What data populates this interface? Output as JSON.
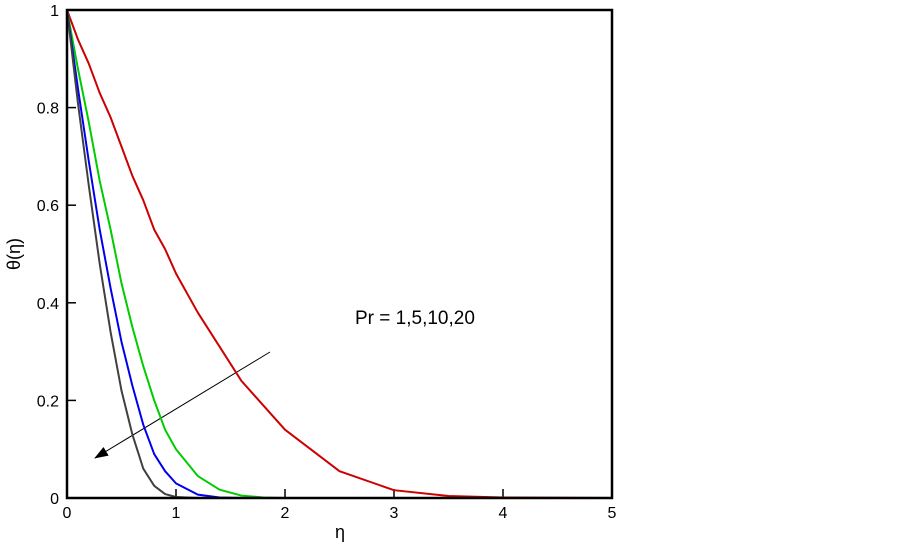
{
  "chart_data": {
    "type": "line",
    "x_label": "η",
    "y_label": "θ(η)",
    "annotation": "Pr = 1,5,10,20",
    "x": [
      0,
      0.1,
      0.2,
      0.3,
      0.4,
      0.5,
      0.6,
      0.7,
      0.8,
      0.9,
      1,
      1.2,
      1.4,
      1.6,
      1.8,
      2,
      2.5,
      3,
      3.5,
      4,
      5
    ],
    "series": [
      {
        "color": "#cc0000",
        "values": [
          1,
          0.94,
          0.89,
          0.83,
          0.78,
          0.72,
          0.66,
          0.61,
          0.55,
          0.51,
          0.46,
          0.38,
          0.31,
          0.24,
          0.19,
          0.14,
          0.055,
          0.016,
          0.004,
          0.001,
          0
        ]
      },
      {
        "color": "#00cc00",
        "values": [
          1,
          0.88,
          0.77,
          0.65,
          0.55,
          0.44,
          0.35,
          0.27,
          0.2,
          0.14,
          0.1,
          0.045,
          0.017,
          0.005,
          0.001,
          0,
          0,
          0,
          0,
          0,
          0
        ]
      },
      {
        "color": "#0000ee",
        "values": [
          1,
          0.84,
          0.69,
          0.55,
          0.43,
          0.32,
          0.23,
          0.15,
          0.09,
          0.055,
          0.03,
          0.007,
          0.001,
          0,
          0,
          0,
          0,
          0,
          0,
          0,
          0
        ]
      },
      {
        "color": "#404040",
        "values": [
          1,
          0.81,
          0.64,
          0.48,
          0.34,
          0.22,
          0.13,
          0.06,
          0.025,
          0.008,
          0.002,
          0,
          0,
          0,
          0,
          0,
          0,
          0,
          0,
          0,
          0
        ]
      }
    ],
    "xlim": [
      0,
      5
    ],
    "ylim": [
      0,
      1
    ],
    "xticks": [
      0,
      1,
      2,
      3,
      4,
      5
    ],
    "yticks": [
      0,
      0.2,
      0.4,
      0.6,
      0.8,
      1
    ]
  }
}
